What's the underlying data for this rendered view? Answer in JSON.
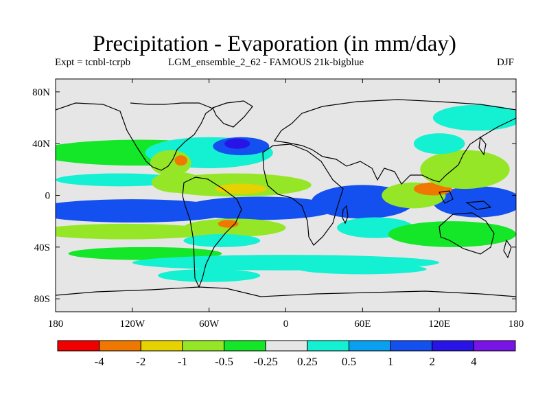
{
  "chart_data": {
    "type": "heatmap",
    "title": "Precipitation - Evaporation (in mm/day)",
    "subtitle_left": "Expt = tcnbl-tcrpb",
    "subtitle_mid": "LGM_ensemble_2_62 - FAMOUS 21k-bigblue",
    "season": "DJF",
    "x_range": [
      -180,
      180
    ],
    "y_range": [
      -90,
      90
    ],
    "x_ticks": [
      {
        "value": -180,
        "label": "180"
      },
      {
        "value": -120,
        "label": "120W"
      },
      {
        "value": -60,
        "label": "60W"
      },
      {
        "value": 0,
        "label": "0"
      },
      {
        "value": 60,
        "label": "60E"
      },
      {
        "value": 120,
        "label": "120E"
      },
      {
        "value": 180,
        "label": "180"
      }
    ],
    "y_ticks": [
      {
        "value": 80,
        "label": "80N"
      },
      {
        "value": 40,
        "label": "40N"
      },
      {
        "value": 0,
        "label": "0"
      },
      {
        "value": -40,
        "label": "40S"
      },
      {
        "value": -80,
        "label": "80S"
      }
    ],
    "colorbar": {
      "colors": [
        "#f00000",
        "#f07800",
        "#e6d200",
        "#96e628",
        "#14e628",
        "#e6e6e6",
        "#14f0d2",
        "#0aa0f0",
        "#1450f0",
        "#2814e6",
        "#7814e6"
      ],
      "labels": [
        "-4",
        "-2",
        "-1",
        "-0.5",
        "-0.25",
        "0.25",
        "0.5",
        "1",
        "2",
        "4"
      ]
    },
    "field": [
      {
        "lon": -115,
        "lat": 33,
        "rx": 80,
        "ry": 10,
        "level": 4
      },
      {
        "lon": -60,
        "lat": 33,
        "rx": 50,
        "ry": 12,
        "level": 6
      },
      {
        "lon": -35,
        "lat": 38,
        "rx": 22,
        "ry": 7,
        "level": 8
      },
      {
        "lon": -38,
        "lat": 40,
        "rx": 10,
        "ry": 4,
        "level": 9
      },
      {
        "lon": 150,
        "lat": 60,
        "rx": 35,
        "ry": 10,
        "level": 6
      },
      {
        "lon": -130,
        "lat": 12,
        "rx": 50,
        "ry": 5,
        "level": 6
      },
      {
        "lon": -90,
        "lat": 25,
        "rx": 16,
        "ry": 10,
        "level": 3
      },
      {
        "lon": -82,
        "lat": 27,
        "rx": 5,
        "ry": 4,
        "level": 1
      },
      {
        "lon": -85,
        "lat": 10,
        "rx": 20,
        "ry": 8,
        "level": 3
      },
      {
        "lon": -40,
        "lat": 8,
        "rx": 60,
        "ry": 9,
        "level": 3
      },
      {
        "lon": -35,
        "lat": 5,
        "rx": 20,
        "ry": 4,
        "level": 2
      },
      {
        "lon": -140,
        "lat": -12,
        "rx": 45,
        "ry": 6,
        "level": 10
      },
      {
        "lon": -120,
        "lat": -12,
        "rx": 80,
        "ry": 9,
        "level": 8
      },
      {
        "lon": -20,
        "lat": -10,
        "rx": 45,
        "ry": 6,
        "level": 10
      },
      {
        "lon": -20,
        "lat": -10,
        "rx": 60,
        "ry": 9,
        "level": 8
      },
      {
        "lon": 60,
        "lat": -5,
        "rx": 30,
        "ry": 8,
        "level": 10
      },
      {
        "lon": 60,
        "lat": -5,
        "rx": 40,
        "ry": 13,
        "level": 8
      },
      {
        "lon": 165,
        "lat": -5,
        "rx": 20,
        "ry": 8,
        "level": 10
      },
      {
        "lon": 150,
        "lat": -5,
        "rx": 35,
        "ry": 12,
        "level": 8
      },
      {
        "lon": 100,
        "lat": 0,
        "rx": 25,
        "ry": 10,
        "level": 3
      },
      {
        "lon": 115,
        "lat": 5,
        "rx": 15,
        "ry": 5,
        "level": 1
      },
      {
        "lon": 140,
        "lat": 20,
        "rx": 35,
        "ry": 15,
        "level": 3
      },
      {
        "lon": 120,
        "lat": 40,
        "rx": 20,
        "ry": 8,
        "level": 6
      },
      {
        "lon": -125,
        "lat": -28,
        "rx": 70,
        "ry": 6,
        "level": 3
      },
      {
        "lon": -40,
        "lat": -25,
        "rx": 40,
        "ry": 7,
        "level": 3
      },
      {
        "lon": -45,
        "lat": -22,
        "rx": 8,
        "ry": 3,
        "level": 1
      },
      {
        "lon": -50,
        "lat": -35,
        "rx": 30,
        "ry": 5,
        "level": 6
      },
      {
        "lon": 70,
        "lat": -25,
        "rx": 30,
        "ry": 8,
        "level": 6
      },
      {
        "lon": 130,
        "lat": -30,
        "rx": 50,
        "ry": 10,
        "level": 4
      },
      {
        "lon": -110,
        "lat": -45,
        "rx": 60,
        "ry": 5,
        "level": 4
      },
      {
        "lon": 0,
        "lat": -52,
        "rx": 120,
        "ry": 6,
        "level": 6
      },
      {
        "lon": -60,
        "lat": -62,
        "rx": 40,
        "ry": 5,
        "level": 6
      },
      {
        "lon": 60,
        "lat": -57,
        "rx": 50,
        "ry": 4,
        "level": 6
      }
    ]
  }
}
